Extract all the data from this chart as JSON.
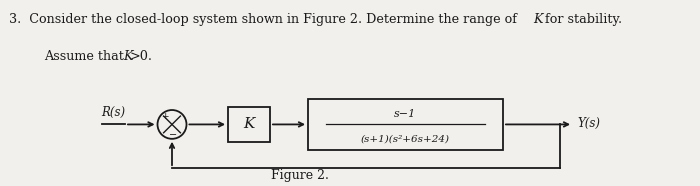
{
  "bg_color": "#f2f0ec",
  "text_color": "#1a1a1a",
  "box_color": "#1a1a1a",
  "arrow_color": "#1a1a1a",
  "fig_label": "Figure 2.",
  "R_label": "R(s)",
  "Y_label": "Y(s)",
  "K_label": "K",
  "tf_num": "s−1",
  "tf_den": "(s+1)(s²+6s+24)",
  "header1_normal1": "3.  Consider the closed-loop system shown in Figure 2. Determine the range of ",
  "header1_italic": "K",
  "header1_normal2": " for stability.",
  "header2_normal1": "Assume that ",
  "header2_italic": "K",
  "header2_normal2": ">0."
}
